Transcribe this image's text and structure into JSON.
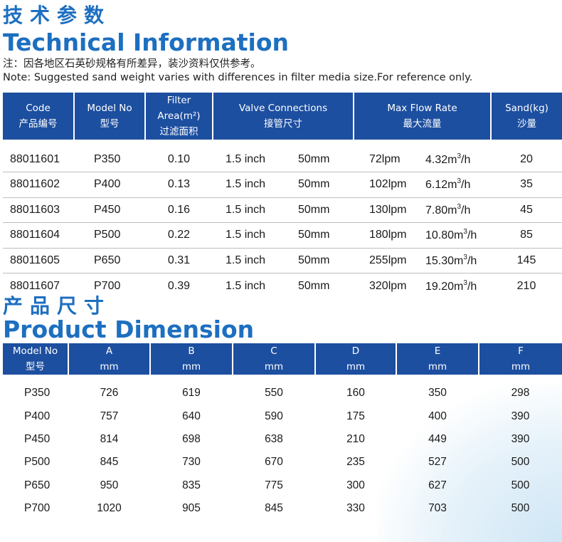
{
  "tech": {
    "title_cn": "技术参数",
    "title_en": "Technical Information",
    "note_cn": "注：因各地区石英砂规格有所差异，装沙资料仅供参考。",
    "note_en": "Note: Suggested sand weight varies with differences in filter media size.For reference only.",
    "headers": [
      {
        "en": "Code",
        "cn": "产品编号"
      },
      {
        "en": "Model No",
        "cn": "型号"
      },
      {
        "en": "Filter Area(m²)",
        "cn": "过滤面积"
      },
      {
        "en": "Valve Connections",
        "cn": "接管尺寸"
      },
      {
        "en": "Max Flow Rate",
        "cn": "最大流量"
      },
      {
        "en": "Sand(kg)",
        "cn": "沙量"
      }
    ],
    "flow_unit_main": "m",
    "flow_unit_sup": "3",
    "flow_unit_tail": "/h",
    "rows": [
      {
        "code": "88011601",
        "model": "P350",
        "area": "0.10",
        "inch": "1.5 inch",
        "mm": "50mm",
        "lpm": "72lpm",
        "m3h": "4.32",
        "sand": "20"
      },
      {
        "code": "88011602",
        "model": "P400",
        "area": "0.13",
        "inch": "1.5 inch",
        "mm": "50mm",
        "lpm": "102lpm",
        "m3h": "6.12",
        "sand": "35"
      },
      {
        "code": "88011603",
        "model": "P450",
        "area": "0.16",
        "inch": "1.5 inch",
        "mm": "50mm",
        "lpm": "130lpm",
        "m3h": "7.80",
        "sand": "45"
      },
      {
        "code": "88011604",
        "model": "P500",
        "area": "0.22",
        "inch": "1.5 inch",
        "mm": "50mm",
        "lpm": "180lpm",
        "m3h": "10.80",
        "sand": "85"
      },
      {
        "code": "88011605",
        "model": "P650",
        "area": "0.31",
        "inch": "1.5 inch",
        "mm": "50mm",
        "lpm": "255lpm",
        "m3h": "15.30",
        "sand": "145"
      },
      {
        "code": "88011607",
        "model": "P700",
        "area": "0.39",
        "inch": "1.5 inch",
        "mm": "50mm",
        "lpm": "320lpm",
        "m3h": "19.20",
        "sand": "210"
      }
    ]
  },
  "dim": {
    "title_cn": "产品尺寸",
    "title_en": "Product Dimension",
    "headers": [
      {
        "en": "Model No",
        "cn": "型号"
      },
      {
        "en": "A",
        "cn": "mm"
      },
      {
        "en": "B",
        "cn": "mm"
      },
      {
        "en": "C",
        "cn": "mm"
      },
      {
        "en": "D",
        "cn": "mm"
      },
      {
        "en": "E",
        "cn": "mm"
      },
      {
        "en": "F",
        "cn": "mm"
      }
    ],
    "rows": [
      {
        "model": "P350",
        "a": "726",
        "b": "619",
        "c": "550",
        "d": "160",
        "e": "350",
        "f": "298"
      },
      {
        "model": "P400",
        "a": "757",
        "b": "640",
        "c": "590",
        "d": "175",
        "e": "400",
        "f": "390"
      },
      {
        "model": "P450",
        "a": "814",
        "b": "698",
        "c": "638",
        "d": "210",
        "e": "449",
        "f": "390"
      },
      {
        "model": "P500",
        "a": "845",
        "b": "730",
        "c": "670",
        "d": "235",
        "e": "527",
        "f": "500"
      },
      {
        "model": "P650",
        "a": "950",
        "b": "835",
        "c": "775",
        "d": "300",
        "e": "627",
        "f": "500"
      },
      {
        "model": "P700",
        "a": "1020",
        "b": "905",
        "c": "845",
        "d": "330",
        "e": "703",
        "f": "500"
      }
    ]
  }
}
